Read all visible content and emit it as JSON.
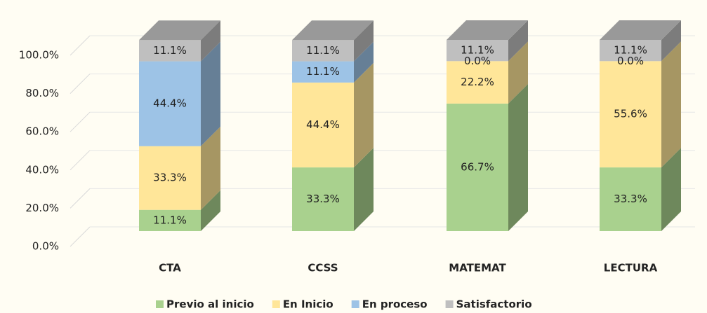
{
  "chart_data": {
    "type": "stacked_bar_3d",
    "categories": [
      "CTA",
      "CCSS",
      "MATEMAT",
      "LECTURA"
    ],
    "series": [
      {
        "name": "Previo al inicio",
        "color": "#a9d18e",
        "values": [
          11.1,
          33.3,
          66.7,
          33.3
        ],
        "value_labels": [
          "11.1%",
          "33.3%",
          "66.7%",
          "33.3%"
        ]
      },
      {
        "name": "En Inicio",
        "color": "#ffe699",
        "values": [
          33.3,
          44.4,
          22.2,
          55.6
        ],
        "value_labels": [
          "33.3%",
          "44.4%",
          "22.2%",
          "55.6%"
        ]
      },
      {
        "name": "En proceso",
        "color": "#9dc3e6",
        "values": [
          44.4,
          11.1,
          0.0,
          0.0
        ],
        "value_labels": [
          "44.4%",
          "11.1%",
          "0.0%",
          "0.0%"
        ]
      },
      {
        "name": "Satisfactorio",
        "color": "#bfbfbf",
        "values": [
          11.1,
          11.1,
          11.1,
          11.1
        ],
        "value_labels": [
          "11.1%",
          "11.1%",
          "11.1%",
          "11.1%"
        ]
      }
    ],
    "ylim": [
      0,
      100
    ],
    "yticks": [
      {
        "value": 0,
        "label": "0.0%"
      },
      {
        "value": 20,
        "label": "20.0%"
      },
      {
        "value": 40,
        "label": "40.0%"
      },
      {
        "value": 60,
        "label": "60.0%"
      },
      {
        "value": 80,
        "label": "80.0%"
      },
      {
        "value": 100,
        "label": "100.0%"
      }
    ],
    "grid": true,
    "legend": "bottom"
  }
}
